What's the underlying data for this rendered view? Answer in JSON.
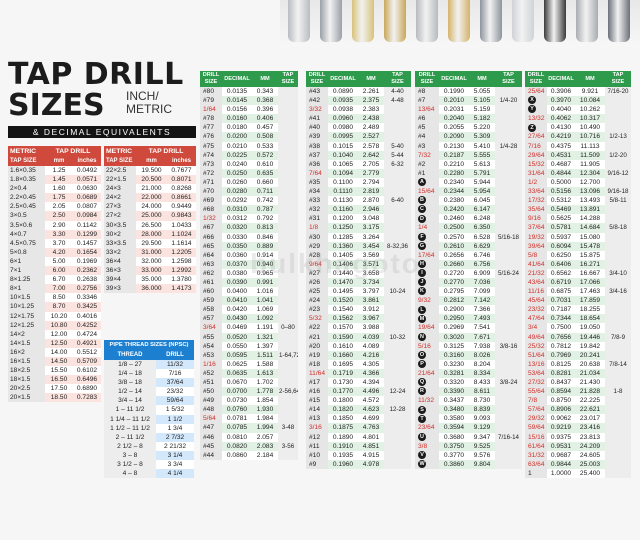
{
  "title": {
    "line1": "TAP DRILL",
    "line2": "SIZES",
    "units": "INCH/\nMETRIC",
    "subtitle": "& DECIMAL EQUIVALENTS"
  },
  "watermark": "bulkhagoto",
  "colors": {
    "red": "#cf4a3c",
    "green": "#2e9a4b",
    "blue": "#1d7fcf",
    "fraction": "#d0302a"
  },
  "metric_headers": {
    "metric": "METRIC",
    "tap_size": "TAP SIZE",
    "tap_drill": "TAP DRILL",
    "mm": "mm",
    "inches": "inches"
  },
  "metric_left": [
    [
      "1.6×0.35",
      "1.25",
      "0.0492"
    ],
    [
      "1.8×0.35",
      "1.45",
      "0.0571"
    ],
    [
      "2×0.4",
      "1.60",
      "0.0630"
    ],
    [
      "2.2×0.45",
      "1.75",
      "0.0689"
    ],
    [
      "2.5×0.45",
      "2.05",
      "0.0807"
    ],
    [
      "3×0.5",
      "2.50",
      "0.0984"
    ],
    [
      "3.5×0.6",
      "2.90",
      "0.1142"
    ],
    [
      "4×0.7",
      "3.30",
      "0.1299"
    ],
    [
      "4.5×0.75",
      "3.70",
      "0.1457"
    ],
    [
      "5×0.8",
      "4.20",
      "0.1654"
    ],
    [
      "6×1",
      "5.00",
      "0.1969"
    ],
    [
      "7×1",
      "6.00",
      "0.2362"
    ],
    [
      "8×1.25",
      "6.70",
      "0.2638"
    ],
    [
      "8×1",
      "7.00",
      "0.2756"
    ],
    [
      "10×1.5",
      "8.50",
      "0.3346"
    ],
    [
      "10×1.25",
      "8.70",
      "0.3425"
    ],
    [
      "12×1.75",
      "10.20",
      "0.4016"
    ],
    [
      "12×1.25",
      "10.80",
      "0.4252"
    ],
    [
      "14×2",
      "12.00",
      "0.4724"
    ],
    [
      "14×1.5",
      "12.50",
      "0.4921"
    ],
    [
      "16×2",
      "14.00",
      "0.5512"
    ],
    [
      "16×1.5",
      "14.50",
      "0.5709"
    ],
    [
      "18×2.5",
      "15.50",
      "0.6102"
    ],
    [
      "18×1.5",
      "16.50",
      "0.6496"
    ],
    [
      "20×2.5",
      "17.50",
      "0.6890"
    ],
    [
      "20×1.5",
      "18.50",
      "0.7283"
    ]
  ],
  "metric_right": [
    [
      "22×2.5",
      "19.500",
      "0.7677"
    ],
    [
      "22×1.5",
      "20.500",
      "0.8071"
    ],
    [
      "24×3",
      "21.000",
      "0.8268"
    ],
    [
      "24×2",
      "22.000",
      "0.8661"
    ],
    [
      "27×3",
      "24.000",
      "0.9449"
    ],
    [
      "27×2",
      "25.000",
      "0.9843"
    ],
    [
      "30×3.5",
      "26.500",
      "1.0433"
    ],
    [
      "30×2",
      "28.000",
      "1.1024"
    ],
    [
      "33×3.5",
      "29.500",
      "1.1614"
    ],
    [
      "33×2",
      "31.000",
      "1.2205"
    ],
    [
      "36×4",
      "32.000",
      "1.2598"
    ],
    [
      "36×3",
      "33.000",
      "1.2992"
    ],
    [
      "39×4",
      "35.000",
      "1.3780"
    ],
    [
      "39×3",
      "36.000",
      "1.4173"
    ]
  ],
  "pipe": {
    "title": "PIPE THREAD SIZES (NPSC)",
    "thread": "THREAD",
    "drill": "DRILL",
    "rows": [
      [
        "1/8 – 27",
        "11/32"
      ],
      [
        "1/4 – 18",
        "7/16"
      ],
      [
        "3/8 – 18",
        "37/64"
      ],
      [
        "1/2 – 14",
        "23/32"
      ],
      [
        "3/4 – 14",
        "59/64"
      ],
      [
        "1 – 11 1/2",
        "1 5/32"
      ],
      [
        "1 1/4 – 11 1/2",
        "1 1/2"
      ],
      [
        "1 1/2 – 11 1/2",
        "1 3/4"
      ],
      [
        "2 – 11 1/2",
        "2 7/32"
      ],
      [
        "2 1/2 – 8",
        "2 21/32"
      ],
      [
        "3 – 8",
        "3 1/4"
      ],
      [
        "3 1/2 – 8",
        "3 3/4"
      ],
      [
        "4 – 8",
        "4 1/4"
      ]
    ]
  },
  "drill_headers": {
    "drill_size": "DRILL\nSIZE",
    "decimal": "DECIMAL",
    "mm": "MM",
    "tap_size": "TAP\nSIZE"
  },
  "drill_tables": [
    [
      [
        "#80",
        "0.0135",
        "0.343",
        ""
      ],
      [
        "#79",
        "0.0145",
        "0.368",
        ""
      ],
      [
        "1/64",
        "0.0156",
        "0.396",
        ""
      ],
      [
        "#78",
        "0.0160",
        "0.406",
        ""
      ],
      [
        "#77",
        "0.0180",
        "0.457",
        ""
      ],
      [
        "#76",
        "0.0200",
        "0.508",
        ""
      ],
      [
        "#75",
        "0.0210",
        "0.533",
        ""
      ],
      [
        "#74",
        "0.0225",
        "0.572",
        ""
      ],
      [
        "#73",
        "0.0240",
        "0.610",
        ""
      ],
      [
        "#72",
        "0.0250",
        "0.635",
        ""
      ],
      [
        "#71",
        "0.0260",
        "0.660",
        ""
      ],
      [
        "#70",
        "0.0280",
        "0.711",
        ""
      ],
      [
        "#69",
        "0.0292",
        "0.742",
        ""
      ],
      [
        "#68",
        "0.0310",
        "0.787",
        ""
      ],
      [
        "1/32",
        "0.0312",
        "0.792",
        ""
      ],
      [
        "#67",
        "0.0320",
        "0.813",
        ""
      ],
      [
        "#66",
        "0.0330",
        "0.846",
        ""
      ],
      [
        "#65",
        "0.0350",
        "0.889",
        ""
      ],
      [
        "#64",
        "0.0360",
        "0.914",
        ""
      ],
      [
        "#63",
        "0.0370",
        "0.940",
        ""
      ],
      [
        "#62",
        "0.0380",
        "0.965",
        ""
      ],
      [
        "#61",
        "0.0390",
        "0.991",
        ""
      ],
      [
        "#60",
        "0.0400",
        "1.016",
        ""
      ],
      [
        "#59",
        "0.0410",
        "1.041",
        ""
      ],
      [
        "#58",
        "0.0420",
        "1.069",
        ""
      ],
      [
        "#57",
        "0.0430",
        "1.092",
        ""
      ],
      [
        "3/64",
        "0.0469",
        "1.191",
        "0–80"
      ],
      [
        "#55",
        "0.0520",
        "1.321",
        ""
      ],
      [
        "#54",
        "0.0550",
        "1.397",
        ""
      ],
      [
        "#53",
        "0.0595",
        "1.511",
        "1-64,72"
      ],
      [
        "1/16",
        "0.0625",
        "1.588",
        ""
      ],
      [
        "#52",
        "0.0635",
        "1.613",
        ""
      ],
      [
        "#51",
        "0.0670",
        "1.702",
        ""
      ],
      [
        "#50",
        "0.0700",
        "1.778",
        "2-56,64"
      ],
      [
        "#49",
        "0.0730",
        "1.854",
        ""
      ],
      [
        "#48",
        "0.0760",
        "1.930",
        ""
      ],
      [
        "5/64",
        "0.0781",
        "1.984",
        ""
      ],
      [
        "#47",
        "0.0785",
        "1.994",
        "3-48"
      ],
      [
        "#46",
        "0.0810",
        "2.057",
        ""
      ],
      [
        "#45",
        "0.0820",
        "2.083",
        "3-56"
      ],
      [
        "#44",
        "0.0860",
        "2.184",
        ""
      ]
    ],
    [
      [
        "#43",
        "0.0890",
        "2.261",
        "4-40"
      ],
      [
        "#42",
        "0.0935",
        "2.375",
        "4-48"
      ],
      [
        "3/32",
        "0.0938",
        "2.383",
        ""
      ],
      [
        "#41",
        "0.0960",
        "2.438",
        ""
      ],
      [
        "#40",
        "0.0980",
        "2.489",
        ""
      ],
      [
        "#39",
        "0.0995",
        "2.527",
        ""
      ],
      [
        "#38",
        "0.1015",
        "2.578",
        "5-40"
      ],
      [
        "#37",
        "0.1040",
        "2.642",
        "5-44"
      ],
      [
        "#36",
        "0.1065",
        "2.705",
        "6-32"
      ],
      [
        "7/64",
        "0.1094",
        "2.779",
        ""
      ],
      [
        "#35",
        "0.1100",
        "2.794",
        ""
      ],
      [
        "#34",
        "0.1110",
        "2.819",
        ""
      ],
      [
        "#33",
        "0.1130",
        "2.870",
        "6-40"
      ],
      [
        "#32",
        "0.1160",
        "2.946",
        ""
      ],
      [
        "#31",
        "0.1200",
        "3.048",
        ""
      ],
      [
        "1/8",
        "0.1250",
        "3.175",
        ""
      ],
      [
        "#30",
        "0.1285",
        "3.264",
        ""
      ],
      [
        "#29",
        "0.1360",
        "3.454",
        "8-32,36"
      ],
      [
        "#28",
        "0.1405",
        "3.569",
        ""
      ],
      [
        "9/64",
        "0.1406",
        "3.571",
        ""
      ],
      [
        "#27",
        "0.1440",
        "3.658",
        ""
      ],
      [
        "#26",
        "0.1470",
        "3.734",
        ""
      ],
      [
        "#25",
        "0.1495",
        "3.797",
        "10-24"
      ],
      [
        "#24",
        "0.1520",
        "3.861",
        ""
      ],
      [
        "#23",
        "0.1540",
        "3.912",
        ""
      ],
      [
        "5/32",
        "0.1562",
        "3.967",
        ""
      ],
      [
        "#22",
        "0.1570",
        "3.988",
        ""
      ],
      [
        "#21",
        "0.1590",
        "4.039",
        "10-32"
      ],
      [
        "#20",
        "0.1610",
        "4.089",
        ""
      ],
      [
        "#19",
        "0.1660",
        "4.216",
        ""
      ],
      [
        "#18",
        "0.1695",
        "4.305",
        ""
      ],
      [
        "11/64",
        "0.1719",
        "4.366",
        ""
      ],
      [
        "#17",
        "0.1730",
        "4.394",
        ""
      ],
      [
        "#16",
        "0.1770",
        "4.496",
        "12-24"
      ],
      [
        "#15",
        "0.1800",
        "4.572",
        ""
      ],
      [
        "#14",
        "0.1820",
        "4.623",
        "12-28"
      ],
      [
        "#13",
        "0.1850",
        "4.699",
        ""
      ],
      [
        "3/16",
        "0.1875",
        "4.763",
        ""
      ],
      [
        "#12",
        "0.1890",
        "4.801",
        ""
      ],
      [
        "#11",
        "0.1910",
        "4.851",
        ""
      ],
      [
        "#10",
        "0.1935",
        "4.915",
        ""
      ],
      [
        "#9",
        "0.1960",
        "4.978",
        ""
      ]
    ],
    [
      [
        "#8",
        "0.1990",
        "5.055",
        ""
      ],
      [
        "#7",
        "0.2010",
        "5.105",
        "1/4-20"
      ],
      [
        "13/64",
        "0.2031",
        "5.159",
        ""
      ],
      [
        "#6",
        "0.2040",
        "5.182",
        ""
      ],
      [
        "#5",
        "0.2055",
        "5.220",
        ""
      ],
      [
        "#4",
        "0.2090",
        "5.309",
        ""
      ],
      [
        "#3",
        "0.2130",
        "5.410",
        "1/4-28"
      ],
      [
        "7/32",
        "0.2187",
        "5.555",
        ""
      ],
      [
        "#2",
        "0.2210",
        "5.613",
        ""
      ],
      [
        "#1",
        "0.2280",
        "5.791",
        ""
      ],
      [
        "A",
        "0.2340",
        "5.944",
        ""
      ],
      [
        "15/64",
        "0.2344",
        "5.954",
        ""
      ],
      [
        "B",
        "0.2380",
        "6.045",
        ""
      ],
      [
        "C",
        "0.2420",
        "6.147",
        ""
      ],
      [
        "D",
        "0.2460",
        "6.248",
        ""
      ],
      [
        "1/4",
        "0.2500",
        "6.350",
        ""
      ],
      [
        "F",
        "0.2570",
        "6.528",
        "5/16-18"
      ],
      [
        "G",
        "0.2610",
        "6.629",
        ""
      ],
      [
        "17/64",
        "0.2656",
        "6.746",
        ""
      ],
      [
        "H",
        "0.2660",
        "6.756",
        ""
      ],
      [
        "I",
        "0.2720",
        "6.909",
        "5/16-24"
      ],
      [
        "J",
        "0.2770",
        "7.036",
        ""
      ],
      [
        "K",
        "0.2795",
        "7.099",
        ""
      ],
      [
        "9/32",
        "0.2812",
        "7.142",
        ""
      ],
      [
        "L",
        "0.2900",
        "7.366",
        ""
      ],
      [
        "M",
        "0.2950",
        "7.493",
        ""
      ],
      [
        "19/64",
        "0.2969",
        "7.541",
        ""
      ],
      [
        "N",
        "0.3020",
        "7.671",
        ""
      ],
      [
        "5/16",
        "0.3125",
        "7.938",
        "3/8-16"
      ],
      [
        "O",
        "0.3160",
        "8.026",
        ""
      ],
      [
        "P",
        "0.3230",
        "8.204",
        ""
      ],
      [
        "21/64",
        "0.3281",
        "8.334",
        ""
      ],
      [
        "Q",
        "0.3320",
        "8.433",
        "3/8-24"
      ],
      [
        "R",
        "0.3390",
        "8.611",
        ""
      ],
      [
        "11/32",
        "0.3437",
        "8.730",
        ""
      ],
      [
        "S",
        "0.3480",
        "8.839",
        ""
      ],
      [
        "T",
        "0.3580",
        "9.093",
        ""
      ],
      [
        "23/64",
        "0.3594",
        "9.129",
        ""
      ],
      [
        "U",
        "0.3680",
        "9.347",
        "7/16-14"
      ],
      [
        "3/8",
        "0.3750",
        "9.525",
        ""
      ],
      [
        "V",
        "0.3770",
        "9.576",
        ""
      ],
      [
        "W",
        "0.3860",
        "9.804",
        ""
      ]
    ],
    [
      [
        "25/64",
        "0.3906",
        "9.921",
        "7/16-20"
      ],
      [
        "X",
        "0.3970",
        "10.084",
        ""
      ],
      [
        "Y",
        "0.4040",
        "10.262",
        ""
      ],
      [
        "13/32",
        "0.4062",
        "10.317",
        ""
      ],
      [
        "Z",
        "0.4130",
        "10.490",
        ""
      ],
      [
        "27/64",
        "0.4219",
        "10.716",
        "1/2-13"
      ],
      [
        "7/16",
        "0.4375",
        "11.113",
        ""
      ],
      [
        "29/64",
        "0.4531",
        "11.509",
        "1/2-20"
      ],
      [
        "15/32",
        "0.4687",
        "11.905",
        ""
      ],
      [
        "31/64",
        "0.4844",
        "12.304",
        "9/16-12"
      ],
      [
        "1/2",
        "0.5000",
        "12.700",
        ""
      ],
      [
        "33/64",
        "0.5156",
        "13.096",
        "9/16-18"
      ],
      [
        "17/32",
        "0.5312",
        "13.493",
        "5/8-11"
      ],
      [
        "35/64",
        "0.5469",
        "13.891",
        ""
      ],
      [
        "9/16",
        "0.5625",
        "14.288",
        ""
      ],
      [
        "37/64",
        "0.5781",
        "14.684",
        "5/8-18"
      ],
      [
        "19/32",
        "0.5937",
        "15.080",
        ""
      ],
      [
        "39/64",
        "0.6094",
        "15.478",
        ""
      ],
      [
        "5/8",
        "0.6250",
        "15.875",
        ""
      ],
      [
        "41/64",
        "0.6406",
        "16.271",
        ""
      ],
      [
        "21/32",
        "0.6562",
        "16.667",
        "3/4-10"
      ],
      [
        "43/64",
        "0.6719",
        "17.066",
        ""
      ],
      [
        "11/16",
        "0.6875",
        "17.463",
        "3/4-16"
      ],
      [
        "45/64",
        "0.7031",
        "17.859",
        ""
      ],
      [
        "23/32",
        "0.7187",
        "18.255",
        ""
      ],
      [
        "47/64",
        "0.7344",
        "18.654",
        ""
      ],
      [
        "3/4",
        "0.7500",
        "19.050",
        ""
      ],
      [
        "49/64",
        "0.7656",
        "19.446",
        "7/8-9"
      ],
      [
        "25/32",
        "0.7812",
        "19.842",
        ""
      ],
      [
        "51/64",
        "0.7969",
        "20.241",
        ""
      ],
      [
        "13/16",
        "0.8125",
        "20.638",
        "7/8-14"
      ],
      [
        "53/64",
        "0.8281",
        "21.034",
        ""
      ],
      [
        "27/32",
        "0.8437",
        "21.430",
        ""
      ],
      [
        "55/64",
        "0.8594",
        "21.828",
        "1-8"
      ],
      [
        "7/8",
        "0.8750",
        "22.225",
        ""
      ],
      [
        "57/64",
        "0.8906",
        "22.621",
        ""
      ],
      [
        "29/32",
        "0.9062",
        "23.017",
        ""
      ],
      [
        "59/64",
        "0.9219",
        "23.416",
        ""
      ],
      [
        "15/16",
        "0.9375",
        "23.813",
        ""
      ],
      [
        "61/64",
        "0.9531",
        "24.209",
        ""
      ],
      [
        "31/32",
        "0.9687",
        "24.605",
        ""
      ],
      [
        "63/64",
        "0.9844",
        "25.003",
        ""
      ],
      [
        "1",
        "1.0000",
        "25.400",
        ""
      ]
    ]
  ]
}
